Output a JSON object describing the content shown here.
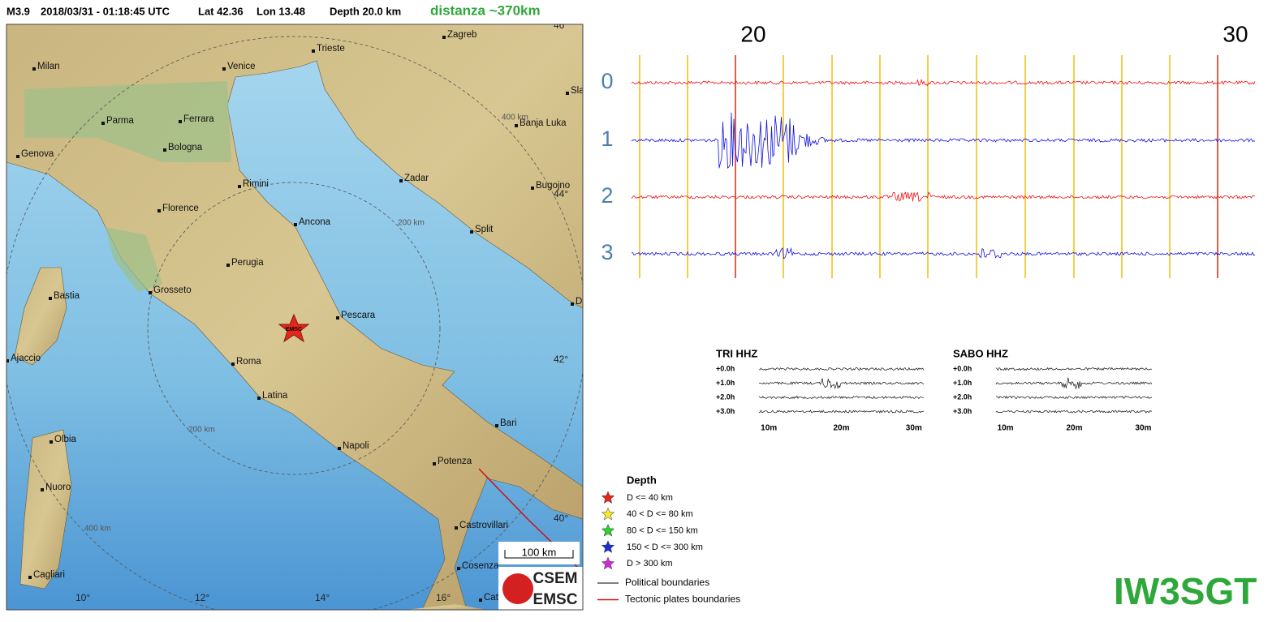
{
  "header": {
    "magnitude": "M3.9",
    "datetime": "2018/03/31 - 01:18:45 UTC",
    "lat": "Lat 42.36",
    "lon": "Lon 13.48",
    "depth": "Depth 20.0 km",
    "distance": "distanza ~370km"
  },
  "map": {
    "cities": [
      "Zagreb",
      "Milan",
      "Venice",
      "Trieste",
      "Slav",
      "Parma",
      "Ferrara",
      "Banja Luka",
      "Genova",
      "Bologna",
      "Zadar",
      "Rimini",
      "Bugojno",
      "Florence",
      "Ancona",
      "Split",
      "Perugia",
      "Grosseto",
      "Bastia",
      "Du",
      "Pescara",
      "Ajaccio",
      "Roma",
      "Latina",
      "Bari",
      "Olbia",
      "Napoli",
      "Potenza",
      "Nuoro",
      "Castrovillari",
      "Cosenza",
      "Cagliari",
      "Cata"
    ],
    "lat_labels": [
      "46",
      "44°",
      "42°",
      "40°"
    ],
    "lon_labels": [
      "10°",
      "12°",
      "14°",
      "16°"
    ],
    "ring_labels": [
      "400 km",
      "200 km",
      "200 km",
      "400 km"
    ],
    "star_label": "EMSC",
    "scale": "100 km",
    "logo": [
      "CSEM",
      "EMSC"
    ]
  },
  "legend": {
    "title": "Depth",
    "depth_items": [
      {
        "label": "D <= 40 km",
        "color": "#e8251c"
      },
      {
        "label": "40 < D <= 80 km",
        "color": "#f2ea2a"
      },
      {
        "label": "80 < D <= 150 km",
        "color": "#2cd12c"
      },
      {
        "label": "150 < D <= 300 km",
        "color": "#1a2fd8"
      },
      {
        "label": "D > 300 km",
        "color": "#d22ad6"
      }
    ],
    "line_items": [
      {
        "label": "Political boundaries",
        "color": "#555555"
      },
      {
        "label": "Tectonic plates boundaries",
        "color": "#d01010"
      }
    ]
  },
  "seismogram": {
    "minute_labels": [
      "20",
      "30"
    ],
    "trace_labels": [
      "0",
      "1",
      "2",
      "3"
    ]
  },
  "helicorders": [
    {
      "title": "TRI HHZ",
      "rows": [
        "+0.0h",
        "+1.0h",
        "+2.0h",
        "+3.0h"
      ],
      "xlabels": [
        "10m",
        "20m",
        "30m"
      ]
    },
    {
      "title": "SABO HHZ",
      "rows": [
        "+0.0h",
        "+1.0h",
        "+2.0h",
        "+3.0h"
      ],
      "xlabels": [
        "10m",
        "20m",
        "30m"
      ]
    }
  ],
  "callsign": "IW3SGT"
}
